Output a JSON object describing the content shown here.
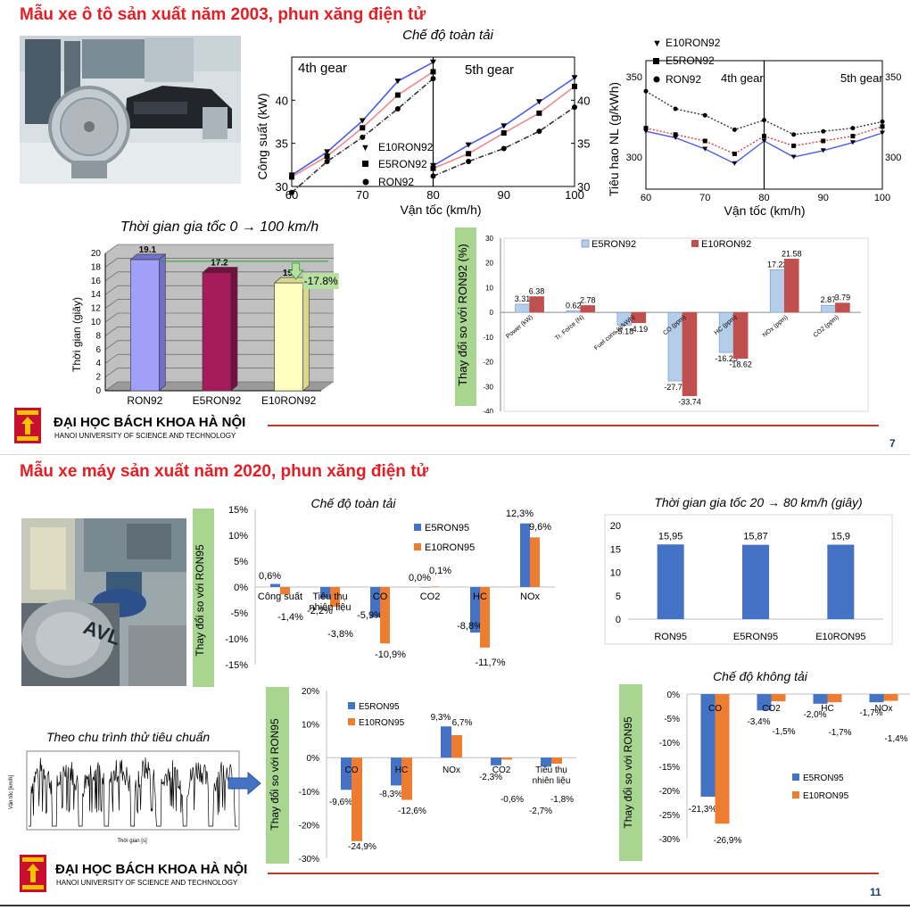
{
  "top_section": {
    "title": "Mẫu xe ô tô sản xuất năm 2003, phun xăng điện tử",
    "page_number": "7"
  },
  "bottom_section": {
    "title": "Mẫu xe máy sản xuất năm 2020, phun xăng điện tử",
    "page_number": "11",
    "cycle_label": "Theo chu trình thử tiêu chuẩn",
    "cycle_xlabel": "Thời gian [s]",
    "cycle_ylabel": "Vận tốc [km/h]"
  },
  "logo": {
    "name": "ĐẠI HỌC BÁCH KHOA HÀ NỘI",
    "sub": "HANOI UNIVERSITY OF SCIENCE AND TECHNOLOGY"
  },
  "colors": {
    "title_red": "#e41e24",
    "blue": "#4472c4",
    "orange": "#ed7d31",
    "light_blue": "#b4cde9",
    "dark_red": "#c0504d",
    "green_label": "#a8d58f"
  },
  "chart_data": [
    {
      "id": "power",
      "type": "line",
      "title": "Chế độ toàn tải",
      "xlabel": "Vận tốc (km/h)",
      "ylabel": "Công suất (kW)",
      "gear_labels": [
        "4th gear",
        "5th gear"
      ],
      "panels": [
        {
          "xlim": [
            60,
            80
          ],
          "x": [
            60,
            65,
            70,
            75,
            80
          ],
          "ylim": [
            30,
            45
          ],
          "yticks": [
            30,
            35,
            40
          ],
          "series": [
            {
              "name": "E10RON92",
              "values": [
                31.3,
                34.0,
                37.6,
                42.2,
                44.4
              ]
            },
            {
              "name": "E5RON92",
              "values": [
                31.1,
                33.5,
                36.8,
                40.6,
                43.3
              ]
            },
            {
              "name": "RON92",
              "values": [
                29.3,
                32.9,
                35.7,
                39.0,
                42.5
              ]
            }
          ]
        },
        {
          "xlim": [
            80,
            100
          ],
          "x": [
            80,
            85,
            90,
            95,
            100
          ],
          "ylim": [
            30,
            45
          ],
          "yticks": [
            30,
            35,
            40
          ],
          "series": [
            {
              "name": "E10RON92",
              "values": [
                32.4,
                34.8,
                37.0,
                39.8,
                42.6
              ]
            },
            {
              "name": "E5RON92",
              "values": [
                32.1,
                33.8,
                36.2,
                38.5,
                41.6
              ]
            },
            {
              "name": "RON92",
              "values": [
                31.2,
                32.9,
                34.4,
                36.4,
                39.2
              ]
            }
          ]
        }
      ],
      "legend": [
        "E10RON92",
        "E5RON92",
        "RON92"
      ],
      "x_tick_labels": [
        "60",
        "70",
        "80",
        "90",
        "100"
      ]
    },
    {
      "id": "bsfc",
      "type": "line",
      "xlabel": "Vận tốc (km/h)",
      "ylabel": "Tiêu hao NL (g/kWh)",
      "gear_labels": [
        "4th gear",
        "5th gear"
      ],
      "legend": [
        "E10RON92",
        "E5RON92",
        "RON92"
      ],
      "ylim": [
        280,
        360
      ],
      "yticks": [
        300,
        350
      ],
      "x": [
        60,
        65,
        70,
        75,
        80,
        85,
        90,
        95,
        100
      ],
      "series": [
        {
          "name": "E10RON92",
          "values": [
            316,
            312,
            305,
            296,
            310,
            300,
            304,
            309,
            315
          ]
        },
        {
          "name": "E5RON92",
          "values": [
            318,
            314,
            310,
            302,
            313,
            307,
            310,
            313,
            319
          ]
        },
        {
          "name": "RON92",
          "values": [
            341,
            330,
            326,
            317,
            323,
            314,
            316,
            318,
            322
          ]
        }
      ],
      "x_tick_labels": [
        "60",
        "70",
        "80",
        "90",
        "100"
      ]
    },
    {
      "id": "accel_car",
      "type": "bar",
      "title": "Thời gian gia tốc 0 → 100 km/h",
      "ylabel": "Thời gian (giây)",
      "categories": [
        "RON92",
        "E5RON92",
        "E10RON92"
      ],
      "values": [
        19.1,
        17.2,
        15.7
      ],
      "value_labels": [
        "19.1",
        "17.2",
        "15.7"
      ],
      "colors": [
        "#a0a0f8",
        "#a41c5a",
        "#ffffc0"
      ],
      "ylim": [
        0,
        20
      ],
      "yticks": [
        0,
        2,
        4,
        6,
        8,
        10,
        12,
        14,
        16,
        18,
        20
      ],
      "annotation": "-17.8%"
    },
    {
      "id": "car_change",
      "type": "bar",
      "ylabel": "Thay đổi so với RON92 (%)",
      "categories": [
        "Power (kW)",
        "Tr. Force (N)",
        "Fuel cons.(g/kWh)",
        "CO (ppm)",
        "HC (ppm)",
        "NOx (ppm)",
        "CO2 (ppm)"
      ],
      "series": [
        {
          "name": "E5RON92",
          "values": [
            3.31,
            0.62,
            -5.18,
            -27.76,
            -16.23,
            17.22,
            2.87
          ],
          "labels": [
            "3.31",
            "0.62",
            "-5.18",
            "-27.76",
            "-16.23",
            "17.22",
            "2.87"
          ]
        },
        {
          "name": "E10RON92",
          "values": [
            6.38,
            2.78,
            -4.19,
            -33.74,
            -18.62,
            21.58,
            3.79
          ],
          "labels": [
            "6.38",
            "2.78",
            "-4.19",
            "-33.74",
            "-18.62",
            "21.58",
            "3.79"
          ]
        }
      ],
      "ylim": [
        -40,
        30
      ],
      "yticks": [
        -40,
        -30,
        -20,
        -10,
        0,
        10,
        20,
        30
      ]
    },
    {
      "id": "moto_full",
      "type": "bar",
      "title": "Chế độ toàn tải",
      "ylabel": "Thay đổi so với RON95",
      "categories": [
        "Công suất",
        "Tiêu thụ nhiên liệu",
        "CO",
        "CO2",
        "HC",
        "NOx"
      ],
      "series": [
        {
          "name": "E5RON95",
          "values": [
            0.6,
            -2.2,
            -5.9,
            0.0,
            -8.8,
            12.3
          ],
          "labels": [
            "0,6%",
            "-2,2%",
            "-5,9%",
            "0,0%",
            "-8,8%",
            "12,3%"
          ]
        },
        {
          "name": "E10RON95",
          "values": [
            -1.4,
            -3.8,
            -10.9,
            0.1,
            -11.7,
            9.6
          ],
          "labels": [
            "-1,4%",
            "-3,8%",
            "-10,9%",
            "0,1%",
            "-11,7%",
            "9,6%"
          ]
        }
      ],
      "ylim": [
        -15,
        15
      ],
      "yticks": [
        "15%",
        "10%",
        "5%",
        "0%",
        "-5%",
        "-10%",
        "-15%"
      ]
    },
    {
      "id": "moto_accel",
      "type": "bar",
      "title": "Thời gian gia tốc 20 → 80 km/h (giây)",
      "categories": [
        "RON95",
        "E5RON95",
        "E10RON95"
      ],
      "values": [
        15.95,
        15.87,
        15.9
      ],
      "value_labels": [
        "15,95",
        "15,87",
        "15,9"
      ],
      "ylim": [
        0,
        20
      ],
      "yticks": [
        0,
        5,
        10,
        15,
        20
      ]
    },
    {
      "id": "moto_cycle",
      "type": "bar",
      "ylabel": "Thay đổi so với RON95",
      "categories": [
        "CO",
        "HC",
        "NOx",
        "CO2",
        "Tiêu thụ nhiên liệu"
      ],
      "series": [
        {
          "name": "E5RON95",
          "values": [
            -9.6,
            -8.3,
            9.3,
            -2.3,
            -2.7
          ],
          "labels": [
            "-9,6%",
            "-8,3%",
            "9,3%",
            "-2,3%",
            "-2,7%"
          ]
        },
        {
          "name": "E10RON95",
          "values": [
            -24.9,
            -12.6,
            6.7,
            -0.6,
            -1.8
          ],
          "labels": [
            "-24,9%",
            "-12,6%",
            "6,7%",
            "-0,6%",
            "-1,8%"
          ]
        }
      ],
      "ylim": [
        -30,
        20
      ],
      "yticks": [
        "20%",
        "10%",
        "0%",
        "-10%",
        "-20%",
        "-30%"
      ]
    },
    {
      "id": "moto_idle",
      "type": "bar",
      "title": "Chế độ không tải",
      "ylabel": "Thay đổi so với RON95",
      "categories": [
        "CO",
        "CO2",
        "HC",
        "NOx"
      ],
      "series": [
        {
          "name": "E5RON95",
          "values": [
            -21.3,
            -3.4,
            -2.0,
            -1.7
          ],
          "labels": [
            "-21,3%",
            "-3,4%",
            "-2,0%",
            "-1,7%"
          ]
        },
        {
          "name": "E10RON95",
          "values": [
            -26.9,
            -1.5,
            -1.7,
            -1.4
          ],
          "labels": [
            "-26,9%",
            "-1,5%",
            "-1,7%",
            "-1,4%"
          ]
        }
      ],
      "ylim": [
        -30,
        0
      ],
      "yticks": [
        "0%",
        "-5%",
        "-10%",
        "-15%",
        "-20%",
        "-25%",
        "-30%"
      ]
    }
  ]
}
